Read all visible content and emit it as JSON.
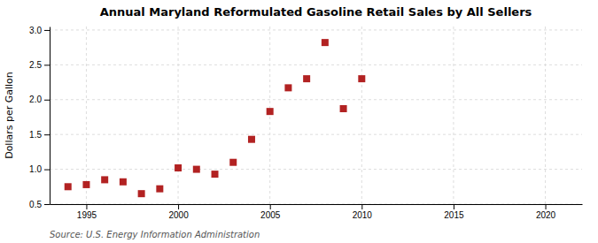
{
  "chart_data": {
    "type": "scatter",
    "title": "Annual Maryland Reformulated Gasoline Retail Sales by All Sellers",
    "ylabel": "Dollars per Gallon",
    "source": "Source: U.S. Energy Information Administration",
    "x": [
      1994,
      1995,
      1996,
      1997,
      1998,
      1999,
      2000,
      2001,
      2002,
      2003,
      2004,
      2005,
      2006,
      2007,
      2008,
      2009,
      2010
    ],
    "values": [
      0.75,
      0.78,
      0.85,
      0.82,
      0.65,
      0.72,
      1.02,
      1.0,
      0.93,
      1.1,
      1.43,
      1.83,
      2.17,
      2.3,
      2.82,
      1.87,
      2.3
    ],
    "color": "#b22222",
    "marker": "square",
    "xlim": [
      1993,
      2022
    ],
    "ylim": [
      0.5,
      3.05
    ],
    "xticks": [
      1995,
      2000,
      2005,
      2010,
      2015,
      2020
    ],
    "yticks": [
      0.5,
      {
        "value": 1.0,
        "label": "1.0"
      },
      1.5,
      {
        "value": 2.0,
        "label": "2.0"
      },
      2.5,
      {
        "value": 3.0,
        "label": "3.0"
      }
    ],
    "grid": true
  }
}
